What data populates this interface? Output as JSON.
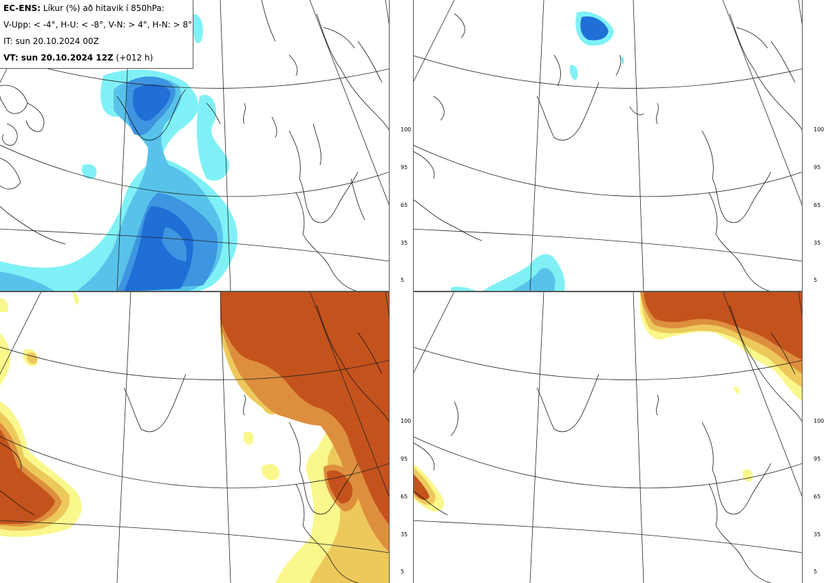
{
  "header": {
    "title_bold": "EC-ENS:",
    "title_rest": "Líkur (%) að hitavik í 850hPa:",
    "thresholds": "V-Upp: < -4°, H-U: < -8°, V-N: > 4°, H-N: > 8°",
    "init_time": "IT: sun 20.10.2024 00Z",
    "valid_bold": "VT: sun 20.10.2024 12Z",
    "valid_rest": "(+012 h)"
  },
  "colorbar": {
    "ticks": [
      "100",
      "95",
      "65",
      "35",
      "5"
    ],
    "cold_colors": [
      "#1f6fd6",
      "#3e95e0",
      "#58c3ea",
      "#7ff1f6"
    ],
    "warm_colors": [
      "#c4521c",
      "#dd8f3e",
      "#edc95c",
      "#faf78c"
    ]
  },
  "panels": [
    {
      "id": "cold-4",
      "position": "top-left"
    },
    {
      "id": "cold-8",
      "position": "top-right"
    },
    {
      "id": "warm-4",
      "position": "bottom-left"
    },
    {
      "id": "warm-8",
      "position": "bottom-right"
    }
  ]
}
